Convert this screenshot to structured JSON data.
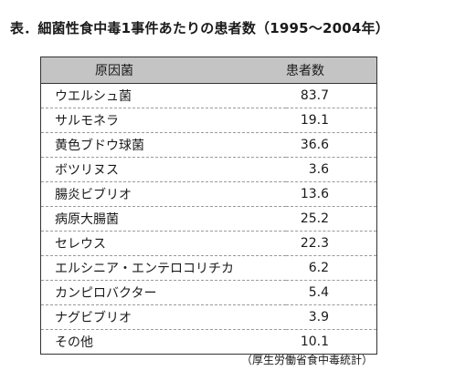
{
  "title": "表．細菌性食中毒1事件あたりの患者数（1995〜2004年）",
  "table": {
    "headers": [
      "原因菌",
      "患者数"
    ],
    "rows": [
      {
        "name": "ウエルシュ菌",
        "count": "83.7"
      },
      {
        "name": "サルモネラ",
        "count": "19.1"
      },
      {
        "name": "黄色ブドウ球菌",
        "count": "36.6"
      },
      {
        "name": "ボツリヌス",
        "count": "3.6"
      },
      {
        "name": "腸炎ビブリオ",
        "count": "13.6"
      },
      {
        "name": "病原大腸菌",
        "count": "25.2"
      },
      {
        "name": "セレウス",
        "count": "22.3"
      },
      {
        "name": "エルシニア・エンテロコリチカ",
        "count": "6.2"
      },
      {
        "name": "カンピロバクター",
        "count": "5.4"
      },
      {
        "name": "ナグビブリオ",
        "count": "3.9"
      },
      {
        "name": "その他",
        "count": "10.1"
      }
    ]
  },
  "source": "（厚生労働省食中毒統計）",
  "colors": {
    "header_background": "#c4c4c4",
    "text": "#1a1a1a"
  }
}
